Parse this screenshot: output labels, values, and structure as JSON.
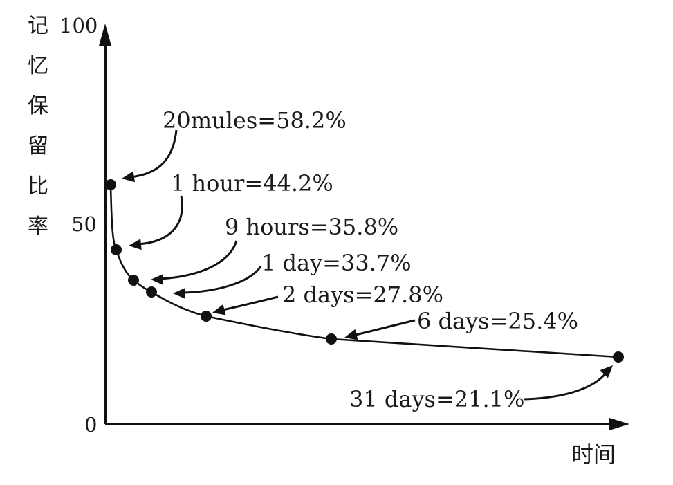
{
  "chart_data": {
    "type": "line",
    "ylabel": "记忆保留比率",
    "xlabel": "时间",
    "ylim": [
      0,
      100
    ],
    "yticks": [
      0,
      50,
      100
    ],
    "grid": false,
    "legend": "none",
    "points": [
      {
        "label": "20mules",
        "value": 58.2,
        "annotation": "20mules=58.2%"
      },
      {
        "label": "1 hour",
        "value": 44.2,
        "annotation": "1 hour=44.2%"
      },
      {
        "label": "9 hours",
        "value": 35.8,
        "annotation": "9 hours=35.8%"
      },
      {
        "label": "1 day",
        "value": 33.7,
        "annotation": "1 day=33.7%"
      },
      {
        "label": "2 days",
        "value": 27.8,
        "annotation": "2 days=27.8%"
      },
      {
        "label": "6 days",
        "value": 25.4,
        "annotation": "6 days=25.4%"
      },
      {
        "label": "31 days",
        "value": 21.1,
        "annotation": "31 days=21.1%"
      }
    ],
    "colors": {
      "ink": "#111111",
      "background": "#ffffff"
    }
  }
}
